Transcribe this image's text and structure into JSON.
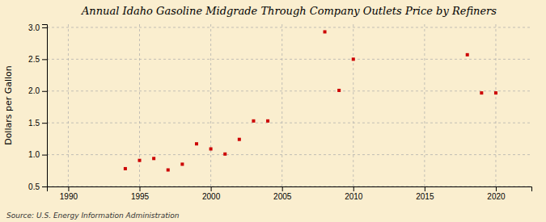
{
  "chart_data": {
    "type": "scatter",
    "title": "Annual Idaho Gasoline Midgrade Through Company Outlets Price by Refiners",
    "y_label": "Dollars per Gallon",
    "annotation": "Source: U.S. Energy Information Administration",
    "x": [
      1994,
      1995,
      1996,
      1997,
      1998,
      1999,
      2000,
      2001,
      2002,
      2003,
      2004,
      2008,
      2009,
      2010,
      2018,
      2019,
      2020
    ],
    "values": [
      0.78,
      0.91,
      0.94,
      0.76,
      0.85,
      1.17,
      1.09,
      1.01,
      1.24,
      1.53,
      1.53,
      2.93,
      2.01,
      2.5,
      2.57,
      1.97,
      1.97
    ],
    "color": "#cc0000",
    "marker": "square",
    "xlim": [
      1988.5,
      2022.5
    ],
    "ylim": [
      0.5,
      3.05
    ],
    "xticks": [
      1990,
      1995,
      2000,
      2005,
      2010,
      2015,
      2020
    ],
    "yticks": [
      0.5,
      {
        "value": 1,
        "label": "1.0"
      },
      1.5,
      {
        "value": 2,
        "label": "2.0"
      },
      2.5,
      {
        "value": 3,
        "label": "3.0"
      }
    ],
    "grid": true
  }
}
